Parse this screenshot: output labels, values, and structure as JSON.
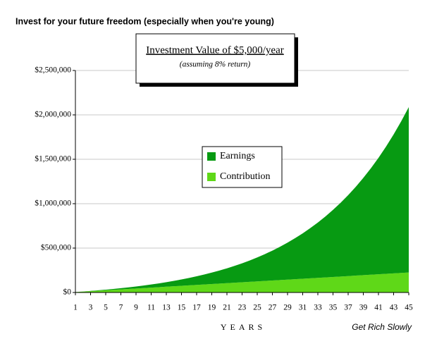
{
  "chart_data": {
    "type": "stacked_area",
    "heading": "Invest for your future freedom (especially when you're young)",
    "title": "Investment Value of $5,000/year",
    "subtitle": "(assuming 8% return)",
    "x_label": "YEARS",
    "credit": "Get Rich Slowly",
    "x": [
      1,
      2,
      3,
      4,
      5,
      6,
      7,
      8,
      9,
      10,
      11,
      12,
      13,
      14,
      15,
      16,
      17,
      18,
      19,
      20,
      21,
      22,
      23,
      24,
      25,
      26,
      27,
      28,
      29,
      30,
      31,
      32,
      33,
      34,
      35,
      36,
      37,
      38,
      39,
      40,
      41,
      42,
      43,
      44,
      45
    ],
    "xlim": [
      1,
      45
    ],
    "xticks": [
      1,
      3,
      5,
      7,
      9,
      11,
      13,
      15,
      17,
      19,
      21,
      23,
      25,
      27,
      29,
      31,
      33,
      35,
      37,
      39,
      41,
      43,
      45
    ],
    "ylim": [
      0,
      2500000
    ],
    "yticks": [
      {
        "value": 0,
        "label": "$0"
      },
      {
        "value": 500000,
        "label": "$500,000"
      },
      {
        "value": 1000000,
        "label": "$1,000,000"
      },
      {
        "value": 1500000,
        "label": "$1,500,000"
      },
      {
        "value": 2000000,
        "label": "$2,000,000"
      },
      {
        "value": 2500000,
        "label": "$2,500,000"
      }
    ],
    "grid": true,
    "legend": "center",
    "series": [
      {
        "name": "Contribution",
        "color": "#5fd818",
        "values": [
          5000,
          10000,
          15000,
          20000,
          25000,
          30000,
          35000,
          40000,
          45000,
          50000,
          55000,
          60000,
          65000,
          70000,
          75000,
          80000,
          85000,
          90000,
          95000,
          100000,
          105000,
          110000,
          115000,
          120000,
          125000,
          130000,
          135000,
          140000,
          145000,
          150000,
          155000,
          160000,
          165000,
          170000,
          175000,
          180000,
          185000,
          190000,
          195000,
          200000,
          205000,
          210000,
          215000,
          220000,
          225000
        ]
      },
      {
        "name": "Earnings",
        "color": "#079a12",
        "values": [
          400,
          1232,
          2531,
          4333,
          6683,
          9614,
          13183,
          17438,
          22433,
          28227,
          34886,
          42476,
          51075,
          60761,
          71621,
          83751,
          97251,
          112231,
          128810,
          147115,
          167284,
          189466,
          213824,
          240530,
          269772,
          301754,
          336694,
          374830,
          416416,
          461729,
          511068,
          564753,
          623133,
          686584,
          755511,
          830352,
          911580,
          999706,
          1095283,
          1198905,
          1311218,
          1432915,
          1564748,
          1707528,
          1862130
        ]
      }
    ]
  }
}
